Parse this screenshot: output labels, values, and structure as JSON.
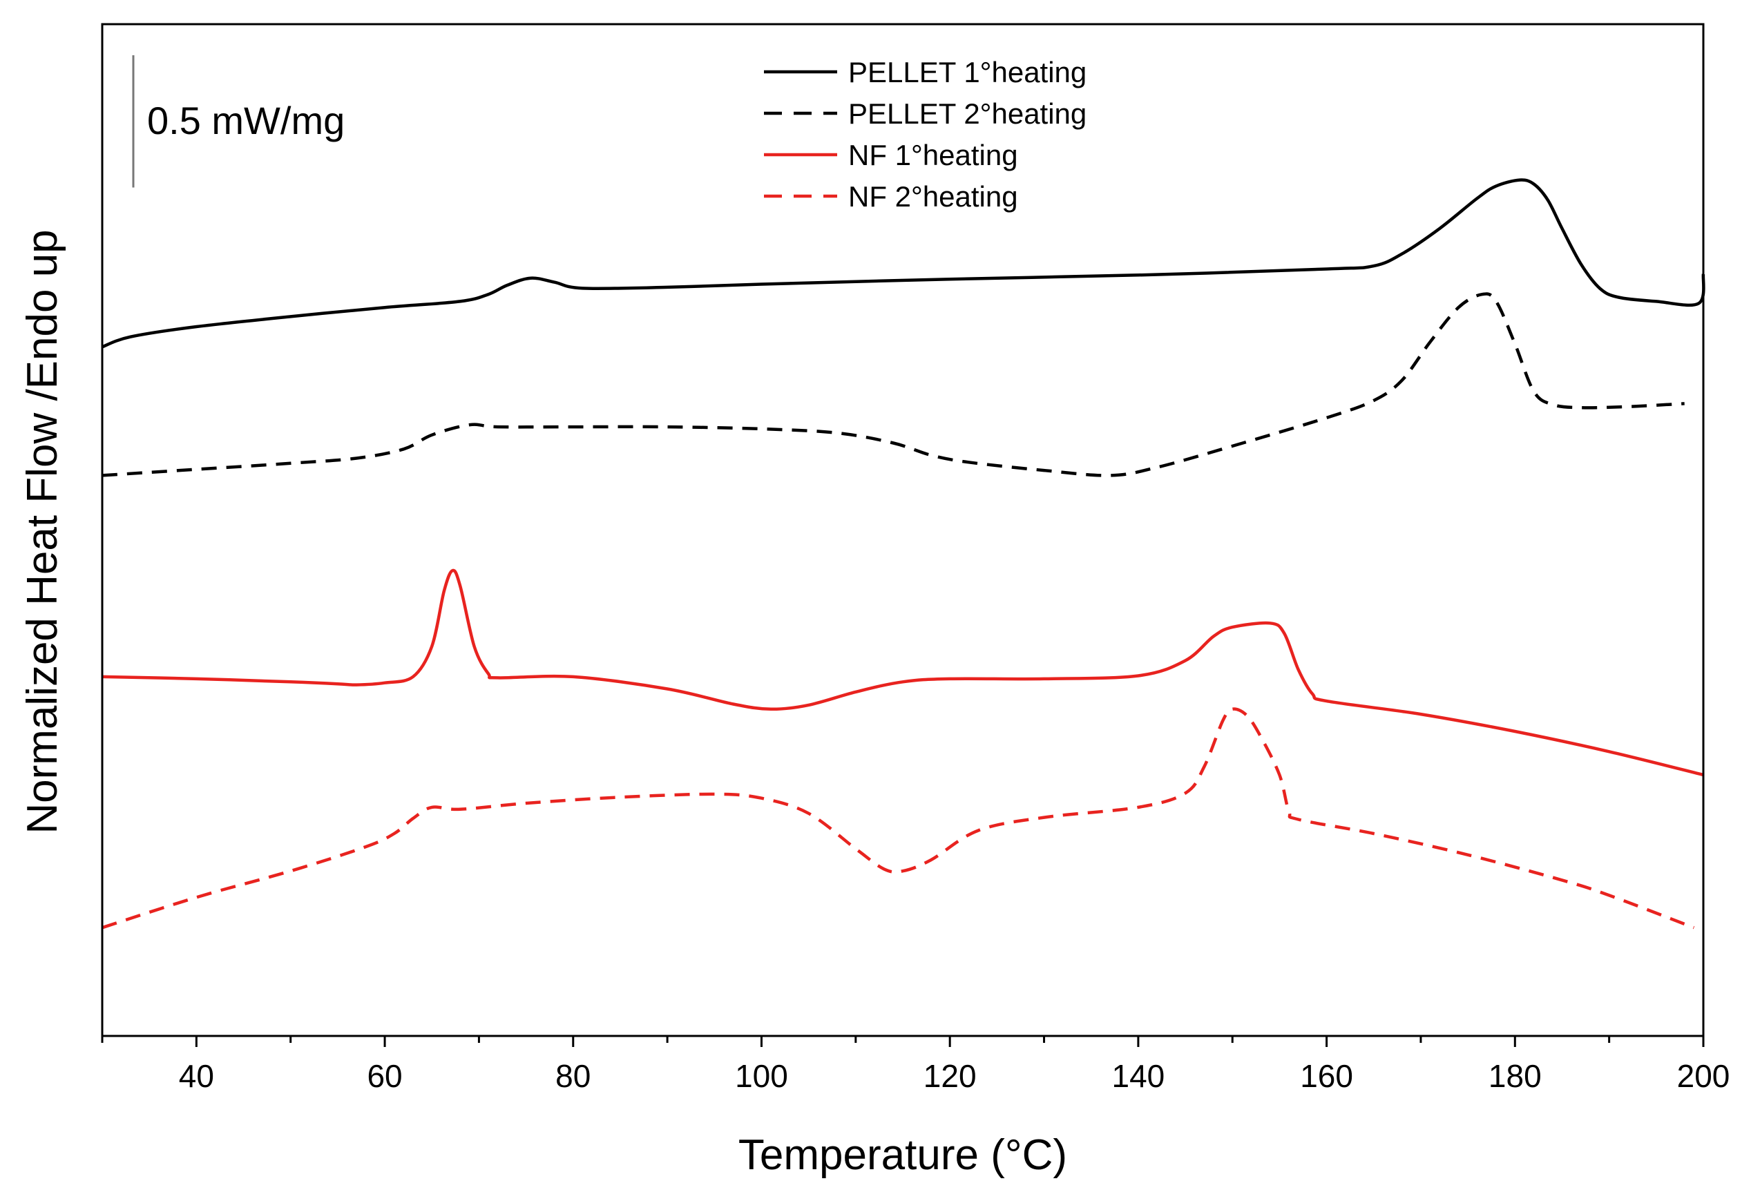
{
  "chart_data": {
    "type": "line",
    "xlabel": "Temperature (°C)",
    "ylabel": "Normalized Heat Flow /Endo up",
    "xlim": [
      30,
      200
    ],
    "xticks": [
      40,
      60,
      80,
      100,
      120,
      140,
      160,
      180,
      200
    ],
    "ylim": [
      0,
      100
    ],
    "y_ticks_labeled": false,
    "scale_bar": {
      "label": "0.5 mW/mg",
      "length": 7.6
    },
    "legend": {
      "position": "top-center"
    },
    "grid": false,
    "series": [
      {
        "name": "PELLET 1°heating",
        "color": "#000000",
        "dash": "solid",
        "x": [
          30,
          33,
          40,
          50,
          60,
          68,
          71,
          73,
          75.5,
          78,
          81,
          90,
          100,
          120,
          140,
          160,
          165,
          168,
          172,
          176,
          178,
          180.5,
          182,
          183.5,
          185,
          187,
          189,
          191,
          195,
          199.5,
          200
        ],
        "y": [
          68.1,
          69.1,
          70.1,
          71.1,
          72.0,
          72.6,
          73.3,
          74.2,
          74.9,
          74.5,
          73.9,
          74.0,
          74.3,
          74.8,
          75.2,
          75.8,
          76.1,
          77.3,
          79.8,
          82.8,
          84.0,
          84.6,
          84.2,
          82.6,
          79.8,
          76.3,
          73.9,
          73.0,
          72.6,
          72.4,
          75.3
        ]
      },
      {
        "name": "PELLET 2°heating",
        "color": "#000000",
        "dash": "dashed",
        "x": [
          30,
          40,
          50,
          57,
          62,
          65,
          69,
          72,
          80,
          90,
          100,
          108,
          114,
          118,
          122,
          130,
          137,
          142,
          150,
          160,
          165,
          168,
          171,
          174,
          176.5,
          178,
          180,
          182,
          184,
          187,
          192,
          198
        ],
        "y": [
          55.4,
          56.0,
          56.6,
          57.1,
          58.0,
          59.4,
          60.4,
          60.2,
          60.2,
          60.2,
          60.0,
          59.6,
          58.6,
          57.4,
          56.7,
          55.9,
          55.4,
          56.2,
          58.3,
          61.1,
          62.8,
          64.8,
          68.6,
          72.0,
          73.3,
          72.6,
          68.4,
          63.7,
          62.4,
          62.1,
          62.2,
          62.5
        ]
      },
      {
        "name": "NF 1°heating",
        "color": "#e8231f",
        "dash": "solid",
        "x": [
          30,
          40,
          50,
          55,
          57,
          60,
          63,
          65,
          66.3,
          67.2,
          68,
          69.5,
          71,
          72,
          80,
          90,
          97,
          101,
          105,
          110,
          115,
          120,
          130,
          140,
          145,
          148,
          150,
          154,
          155.5,
          157,
          158.5,
          160,
          170,
          180,
          190,
          200
        ],
        "y": [
          35.5,
          35.3,
          35.0,
          34.8,
          34.7,
          34.9,
          35.5,
          38.5,
          44.0,
          46.0,
          44.5,
          38.5,
          35.8,
          35.4,
          35.5,
          34.3,
          32.8,
          32.3,
          32.7,
          34.0,
          35.0,
          35.3,
          35.3,
          35.6,
          37.1,
          39.5,
          40.4,
          40.8,
          39.8,
          36.2,
          33.8,
          33.1,
          31.8,
          30.1,
          28.1,
          25.8
        ]
      },
      {
        "name": "NF 2°heating",
        "color": "#e8231f",
        "dash": "dashed",
        "x": [
          30,
          40,
          50,
          58,
          61,
          63,
          65,
          68,
          75,
          85,
          95,
          100,
          105,
          110,
          113,
          115,
          118,
          123,
          130,
          140,
          145,
          147,
          149,
          150,
          151.5,
          153,
          155,
          156,
          157,
          165,
          175,
          185,
          190,
          199
        ],
        "y": [
          10.7,
          13.7,
          16.3,
          18.7,
          20.0,
          21.5,
          22.6,
          22.4,
          23.0,
          23.6,
          23.9,
          23.5,
          22.0,
          18.5,
          16.5,
          16.3,
          17.4,
          20.3,
          21.6,
          22.6,
          24.0,
          26.6,
          31.2,
          32.3,
          31.7,
          29.6,
          25.8,
          22.2,
          21.4,
          20.0,
          17.9,
          15.4,
          13.9,
          10.7
        ]
      }
    ]
  }
}
